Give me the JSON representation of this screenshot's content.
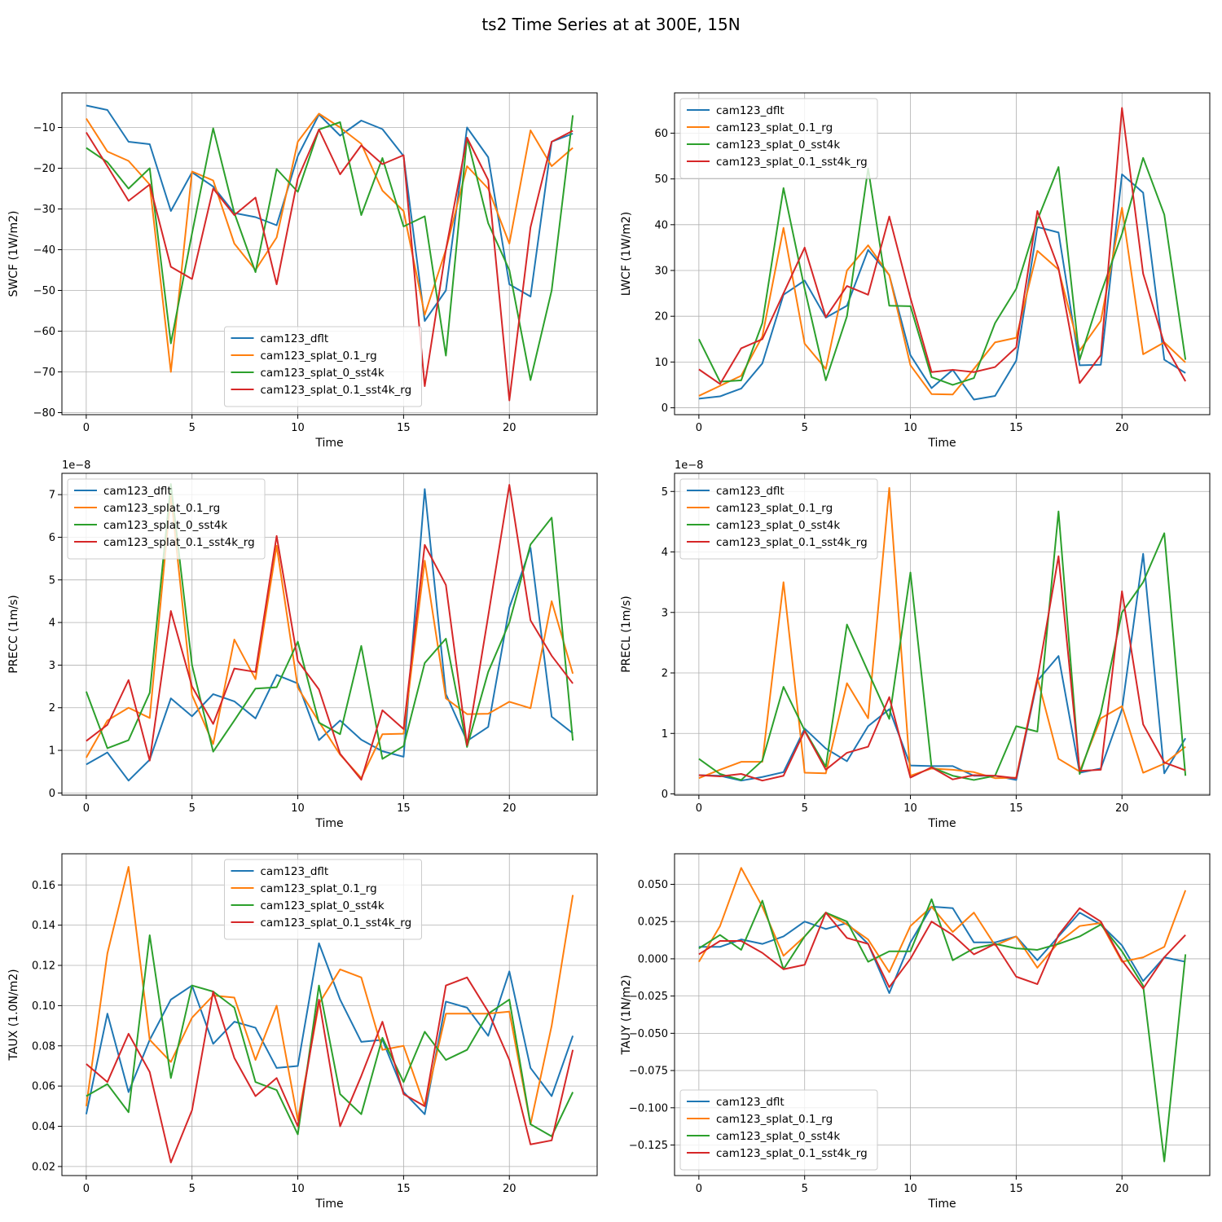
{
  "figure": {
    "title": "ts2 Time Series at at 300E, 15N"
  },
  "series_names": [
    "cam123_dflt",
    "cam123_splat_0.1_rg",
    "cam123_splat_0_sst4k",
    "cam123_splat_0.1_sst4k_rg"
  ],
  "colors": [
    "#1f77b4",
    "#ff7f0e",
    "#2ca02c",
    "#d62728"
  ],
  "chart_data": [
    {
      "type": "line",
      "xlabel": "Time",
      "ylabel": "SWCF (1W/m2)",
      "offset_text": "",
      "legend": "lower-center",
      "grid": true,
      "xlim": [
        -1.15,
        24.15
      ],
      "ylim": [
        -80.5,
        -1.5
      ],
      "xticks": [
        0,
        5,
        10,
        15,
        20
      ],
      "yticks": [
        -80,
        -70,
        -60,
        -50,
        -40,
        -30,
        -20,
        -10
      ],
      "x": [
        0,
        1,
        2,
        3,
        4,
        5,
        6,
        7,
        8,
        9,
        10,
        11,
        12,
        13,
        14,
        15,
        16,
        17,
        18,
        19,
        20,
        21,
        22,
        23
      ],
      "series": [
        {
          "name": "cam123_dflt",
          "values": [
            -4.6,
            -5.7,
            -13.5,
            -14.1,
            -30.5,
            -21.0,
            -24.5,
            -31.0,
            -32.0,
            -34.0,
            -17.0,
            -6.8,
            -12.0,
            -8.3,
            -10.4,
            -17.0,
            -57.5,
            -50.0,
            -10.0,
            -17.3,
            -48.5,
            -51.5,
            -13.5,
            -11.5
          ]
        },
        {
          "name": "cam123_splat_0.1_rg",
          "values": [
            -7.8,
            -15.9,
            -18.2,
            -24.0,
            -70.0,
            -20.8,
            -23.0,
            -38.5,
            -45.0,
            -37.0,
            -13.5,
            -6.6,
            -10.0,
            -14.0,
            -25.5,
            -30.5,
            -56.0,
            -40.0,
            -19.5,
            -25.0,
            -38.5,
            -10.7,
            -19.5,
            -15.0
          ]
        },
        {
          "name": "cam123_splat_0_sst4k",
          "values": [
            -15.0,
            -18.5,
            -25.0,
            -20.0,
            -63.0,
            -36.0,
            -10.2,
            -31.0,
            -45.5,
            -20.2,
            -25.8,
            -10.5,
            -8.7,
            -31.5,
            -17.5,
            -34.3,
            -31.8,
            -66.0,
            -12.5,
            -33.5,
            -45.0,
            -72.0,
            -50.0,
            -7.0
          ]
        },
        {
          "name": "cam123_splat_0.1_sst4k_rg",
          "values": [
            -11.2,
            -19.5,
            -28.0,
            -24.0,
            -44.2,
            -47.2,
            -25.0,
            -31.5,
            -27.2,
            -48.5,
            -22.5,
            -10.5,
            -21.5,
            -14.4,
            -19.0,
            -16.8,
            -73.5,
            -40.0,
            -12.5,
            -22.9,
            -77.0,
            -34.5,
            -13.5,
            -10.8
          ]
        }
      ]
    },
    {
      "type": "line",
      "xlabel": "Time",
      "ylabel": "LWCF (1W/m2)",
      "offset_text": "",
      "legend": "upper-left",
      "grid": true,
      "xlim": [
        -1.15,
        24.15
      ],
      "ylim": [
        -1.5,
        68.8
      ],
      "xticks": [
        0,
        5,
        10,
        15,
        20
      ],
      "yticks": [
        0,
        10,
        20,
        30,
        40,
        50,
        60
      ],
      "x": [
        0,
        1,
        2,
        3,
        4,
        5,
        6,
        7,
        8,
        9,
        10,
        11,
        12,
        13,
        14,
        15,
        16,
        17,
        18,
        19,
        20,
        21,
        22,
        23
      ],
      "series": [
        {
          "name": "cam123_dflt",
          "values": [
            2.0,
            2.5,
            4.2,
            9.7,
            24.7,
            27.8,
            19.7,
            22.3,
            34.5,
            29.0,
            11.5,
            4.3,
            8.3,
            1.8,
            2.6,
            10.3,
            39.5,
            38.3,
            9.3,
            9.4,
            51.0,
            47.0,
            10.5,
            7.6
          ]
        },
        {
          "name": "cam123_splat_0.1_rg",
          "values": [
            2.6,
            4.8,
            7.0,
            15.6,
            39.3,
            14.0,
            8.5,
            30.0,
            35.5,
            29.0,
            9.3,
            3.0,
            2.9,
            8.5,
            14.3,
            15.3,
            34.3,
            30.2,
            12.5,
            19.0,
            43.7,
            11.7,
            14.3,
            9.9
          ]
        },
        {
          "name": "cam123_splat_0_sst4k",
          "values": [
            15.0,
            5.7,
            6.0,
            18.5,
            48.0,
            26.0,
            6.0,
            20.0,
            52.3,
            22.3,
            22.2,
            6.7,
            5.0,
            6.5,
            18.5,
            26.0,
            41.0,
            52.6,
            10.5,
            25.0,
            38.0,
            54.6,
            42.2,
            10.5
          ]
        },
        {
          "name": "cam123_splat_0.1_sst4k_rg",
          "values": [
            8.4,
            5.2,
            13.0,
            15.0,
            25.0,
            35.0,
            19.8,
            26.6,
            24.7,
            41.8,
            24.0,
            7.8,
            8.3,
            7.8,
            8.9,
            13.2,
            43.0,
            30.5,
            5.4,
            11.5,
            65.5,
            29.3,
            14.0,
            5.8
          ]
        }
      ]
    },
    {
      "type": "line",
      "xlabel": "Time",
      "ylabel": "PRECC (1m/s)",
      "offset_text": "1e−8",
      "legend": "upper-left",
      "grid": true,
      "xlim": [
        -1.15,
        24.15
      ],
      "ylim": [
        -0.05,
        7.5
      ],
      "xticks": [
        0,
        5,
        10,
        15,
        20
      ],
      "yticks": [
        0,
        1,
        2,
        3,
        4,
        5,
        6,
        7
      ],
      "x": [
        0,
        1,
        2,
        3,
        4,
        5,
        6,
        7,
        8,
        9,
        10,
        11,
        12,
        13,
        14,
        15,
        16,
        17,
        18,
        19,
        20,
        21,
        22,
        23
      ],
      "series": [
        {
          "name": "cam123_dflt",
          "values": [
            0.67,
            0.95,
            0.29,
            0.78,
            2.22,
            1.8,
            2.32,
            2.15,
            1.75,
            2.77,
            2.57,
            1.24,
            1.7,
            1.25,
            0.98,
            0.85,
            7.13,
            2.32,
            1.22,
            1.55,
            4.35,
            5.75,
            1.79,
            1.4
          ]
        },
        {
          "name": "cam123_splat_0.1_rg",
          "values": [
            0.83,
            1.7,
            2.0,
            1.76,
            7.0,
            2.3,
            1.15,
            3.6,
            2.67,
            5.8,
            2.47,
            1.67,
            0.9,
            0.35,
            1.38,
            1.39,
            5.45,
            2.22,
            1.85,
            1.86,
            2.14,
            1.99,
            4.5,
            2.8
          ]
        },
        {
          "name": "cam123_splat_0_sst4k",
          "values": [
            2.38,
            1.05,
            1.24,
            2.35,
            7.25,
            3.0,
            0.97,
            1.7,
            2.45,
            2.48,
            3.55,
            1.65,
            1.38,
            3.45,
            0.8,
            1.1,
            3.05,
            3.62,
            1.08,
            2.84,
            4.0,
            5.83,
            6.46,
            1.23
          ]
        },
        {
          "name": "cam123_splat_0.1_sst4k_rg",
          "values": [
            1.22,
            1.6,
            2.65,
            0.76,
            4.27,
            2.5,
            1.62,
            2.92,
            2.84,
            6.03,
            3.1,
            2.43,
            0.92,
            0.31,
            1.94,
            1.5,
            5.82,
            4.88,
            1.12,
            4.15,
            7.23,
            4.05,
            3.22,
            2.57
          ]
        }
      ]
    },
    {
      "type": "line",
      "xlabel": "Time",
      "ylabel": "PRECL (1m/s)",
      "offset_text": "1e−8",
      "legend": "upper-left",
      "grid": true,
      "xlim": [
        -1.15,
        24.15
      ],
      "ylim": [
        -0.02,
        5.3
      ],
      "xticks": [
        0,
        5,
        10,
        15,
        20
      ],
      "yticks": [
        0,
        1,
        2,
        3,
        4,
        5
      ],
      "x": [
        0,
        1,
        2,
        3,
        4,
        5,
        6,
        7,
        8,
        9,
        10,
        11,
        12,
        13,
        14,
        15,
        16,
        17,
        18,
        19,
        20,
        21,
        22,
        23
      ],
      "series": [
        {
          "name": "cam123_dflt",
          "values": [
            0.31,
            0.3,
            0.22,
            0.28,
            0.36,
            1.08,
            0.75,
            0.54,
            1.12,
            1.4,
            0.47,
            0.46,
            0.46,
            0.3,
            0.3,
            0.23,
            1.87,
            2.28,
            0.35,
            0.42,
            1.4,
            3.97,
            0.34,
            0.92
          ]
        },
        {
          "name": "cam123_splat_0.1_rg",
          "values": [
            0.26,
            0.4,
            0.53,
            0.53,
            3.5,
            0.35,
            0.34,
            1.83,
            1.25,
            5.06,
            0.3,
            0.42,
            0.4,
            0.36,
            0.26,
            0.27,
            1.92,
            0.58,
            0.37,
            1.25,
            1.45,
            0.35,
            0.5,
            0.78
          ]
        },
        {
          "name": "cam123_splat_0_sst4k",
          "values": [
            0.58,
            0.33,
            0.23,
            0.55,
            1.77,
            1.05,
            0.45,
            2.8,
            2.02,
            1.24,
            3.66,
            0.44,
            0.3,
            0.23,
            0.3,
            1.12,
            1.03,
            4.67,
            0.33,
            1.34,
            3.0,
            3.5,
            4.31,
            0.3
          ]
        },
        {
          "name": "cam123_splat_0.1_sst4k_rg",
          "values": [
            0.31,
            0.29,
            0.33,
            0.22,
            0.3,
            1.04,
            0.4,
            0.68,
            0.78,
            1.6,
            0.27,
            0.44,
            0.24,
            0.31,
            0.3,
            0.26,
            1.9,
            3.93,
            0.38,
            0.4,
            3.35,
            1.15,
            0.52,
            0.39
          ]
        }
      ]
    },
    {
      "type": "line",
      "xlabel": "Time",
      "ylabel": "TAUX (1.0N/m2)",
      "offset_text": "",
      "legend": "upper-center",
      "grid": true,
      "xlim": [
        -1.15,
        24.15
      ],
      "ylim": [
        0.0155,
        0.1755
      ],
      "xticks": [
        0,
        5,
        10,
        15,
        20
      ],
      "yticks": [
        0.02,
        0.04,
        0.06,
        0.08,
        0.1,
        0.12,
        0.14,
        0.16
      ],
      "ytick_labels": [
        "0.02",
        "0.04",
        "0.06",
        "0.08",
        "0.10",
        "0.12",
        "0.14",
        "0.16"
      ],
      "x": [
        0,
        1,
        2,
        3,
        4,
        5,
        6,
        7,
        8,
        9,
        10,
        11,
        12,
        13,
        14,
        15,
        16,
        17,
        18,
        19,
        20,
        21,
        22,
        23
      ],
      "series": [
        {
          "name": "cam123_dflt",
          "values": [
            0.046,
            0.096,
            0.057,
            0.083,
            0.103,
            0.11,
            0.081,
            0.092,
            0.089,
            0.069,
            0.07,
            0.131,
            0.103,
            0.082,
            0.083,
            0.057,
            0.046,
            0.102,
            0.099,
            0.085,
            0.117,
            0.069,
            0.055,
            0.085
          ]
        },
        {
          "name": "cam123_splat_0.1_rg",
          "values": [
            0.05,
            0.126,
            0.169,
            0.083,
            0.072,
            0.094,
            0.105,
            0.104,
            0.073,
            0.1,
            0.043,
            0.101,
            0.118,
            0.114,
            0.078,
            0.08,
            0.05,
            0.096,
            0.096,
            0.096,
            0.097,
            0.041,
            0.09,
            0.155
          ]
        },
        {
          "name": "cam123_splat_0_sst4k",
          "values": [
            0.055,
            0.061,
            0.047,
            0.135,
            0.064,
            0.11,
            0.107,
            0.099,
            0.062,
            0.058,
            0.036,
            0.11,
            0.056,
            0.046,
            0.084,
            0.062,
            0.087,
            0.073,
            0.078,
            0.096,
            0.103,
            0.041,
            0.035,
            0.057
          ]
        },
        {
          "name": "cam123_splat_0.1_sst4k_rg",
          "values": [
            0.071,
            0.062,
            0.086,
            0.067,
            0.022,
            0.048,
            0.107,
            0.074,
            0.055,
            0.064,
            0.04,
            0.103,
            0.04,
            0.065,
            0.092,
            0.056,
            0.05,
            0.11,
            0.114,
            0.097,
            0.073,
            0.031,
            0.033,
            0.078
          ]
        }
      ]
    },
    {
      "type": "line",
      "xlabel": "Time",
      "ylabel": "TAUY (1N/m2)",
      "offset_text": "",
      "legend": "lower-left",
      "grid": true,
      "xlim": [
        -1.15,
        24.15
      ],
      "ylim": [
        -0.1455,
        0.0705
      ],
      "xticks": [
        0,
        5,
        10,
        15,
        20
      ],
      "yticks": [
        -0.125,
        -0.1,
        -0.075,
        -0.05,
        -0.025,
        0.0,
        0.025,
        0.05
      ],
      "ytick_labels": [
        "−0.125",
        "−0.100",
        "−0.075",
        "−0.050",
        "−0.025",
        "0.000",
        "0.025",
        "0.050"
      ],
      "x": [
        0,
        1,
        2,
        3,
        4,
        5,
        6,
        7,
        8,
        9,
        10,
        11,
        12,
        13,
        14,
        15,
        16,
        17,
        18,
        19,
        20,
        21,
        22,
        23
      ],
      "series": [
        {
          "name": "cam123_dflt",
          "values": [
            0.008,
            0.008,
            0.013,
            0.01,
            0.015,
            0.025,
            0.02,
            0.024,
            0.01,
            -0.023,
            0.011,
            0.035,
            0.034,
            0.011,
            0.011,
            0.015,
            -0.001,
            0.015,
            0.031,
            0.023,
            0.009,
            -0.015,
            0.001,
            -0.002
          ]
        },
        {
          "name": "cam123_splat_0.1_rg",
          "values": [
            -0.002,
            0.022,
            0.061,
            0.035,
            0.002,
            0.015,
            0.031,
            0.023,
            0.013,
            -0.009,
            0.022,
            0.035,
            0.018,
            0.031,
            0.009,
            0.015,
            -0.006,
            0.011,
            0.022,
            0.024,
            -0.002,
            0.001,
            0.008,
            0.046
          ]
        },
        {
          "name": "cam123_splat_0_sst4k",
          "values": [
            0.007,
            0.016,
            0.006,
            0.039,
            -0.007,
            0.015,
            0.031,
            0.025,
            -0.002,
            0.005,
            0.005,
            0.04,
            -0.001,
            0.007,
            0.01,
            0.007,
            0.006,
            0.01,
            0.015,
            0.023,
            0.005,
            -0.018,
            -0.136,
            0.003
          ]
        },
        {
          "name": "cam123_splat_0.1_sst4k_rg",
          "values": [
            0.003,
            0.012,
            0.012,
            0.004,
            -0.007,
            -0.004,
            0.031,
            0.014,
            0.01,
            -0.019,
            0.0,
            0.025,
            0.016,
            0.003,
            0.01,
            -0.012,
            -0.017,
            0.016,
            0.034,
            0.025,
            -0.001,
            -0.02,
            0.001,
            0.016
          ]
        }
      ]
    }
  ]
}
